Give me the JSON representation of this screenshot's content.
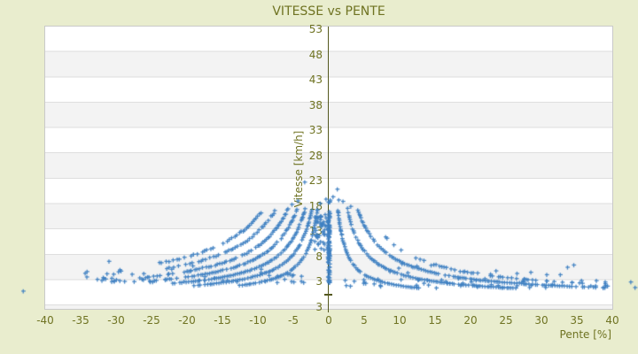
{
  "header": {
    "title": "VITESSE vs PENTE"
  },
  "chart_data": {
    "type": "scatter",
    "title": "VITESSE vs PENTE",
    "xlabel": "Pente [%]",
    "ylabel": "Vitesse [km/h]",
    "xlim": [
      -40,
      40
    ],
    "ylim": [
      -2.5,
      53.5
    ],
    "x_ticks": [
      -40,
      -35,
      -30,
      -25,
      -20,
      -15,
      -10,
      -5,
      0,
      5,
      10,
      15,
      20,
      25,
      30,
      35,
      40
    ],
    "y_ticks": [
      53,
      48,
      43,
      38,
      33,
      28,
      23,
      18,
      13,
      8,
      3
    ],
    "y_axis_bottom_label": "3",
    "grid": "alternating-horizontal-bands",
    "legend": false,
    "marker": {
      "shape": "plus",
      "size": 5,
      "color": "#3e80c2"
    },
    "colors": {
      "figure_bg": "#e9edce",
      "plot_bg": "#ffffff",
      "band": "#f3f3f3",
      "gridline": "#dedede",
      "plot_border": "#c9c9c9",
      "axis_line": "#54581e",
      "text": "#6f7322"
    },
    "pattern_note": "Points form hyperbolic families v = k/|pente| (quantized GPS elevation steps), a dense vertical column at pente=0 from v=2.6 to 17.3 km/h, and low-speed noise bands along both bottom sides.",
    "seed": 13,
    "curve_families": [
      {
        "side": "uphill",
        "sign": 1,
        "k_values": [
          22,
          45,
          70,
          95
        ],
        "v_top": [
          17.2,
          17.2,
          17.2,
          13.0
        ],
        "v_min": 1.7,
        "p_abs_max": 40,
        "fade_start": 30,
        "fade_end": 47,
        "density": [
          1,
          1,
          0.95,
          0.5
        ]
      },
      {
        "side": "downhill",
        "sign": -1,
        "k_values": [
          28,
          42,
          58,
          78,
          100,
          128,
          158
        ],
        "v_top": [
          17.3,
          17.3,
          17.3,
          17.3,
          17.3,
          16.8,
          16.5
        ],
        "v_min": 2.2,
        "p_abs_max": 27,
        "fade_start": 16,
        "fade_end": 28,
        "density": [
          1,
          1,
          1,
          0.95,
          0.9,
          0.85,
          0.8
        ]
      }
    ],
    "clusters": [
      {
        "name": "zero-slope-column",
        "p": [
          -0.16,
          0.16
        ],
        "v": [
          2.6,
          17.3
        ],
        "n": 95
      },
      {
        "name": "near-axis-downhill-blob",
        "p": [
          -2.0,
          -0.35
        ],
        "v": [
          9.2,
          16.3
        ],
        "n": 42
      },
      {
        "name": "above-crest-sparse",
        "p": [
          -6.5,
          3.2
        ],
        "v": [
          17.4,
          19.3
        ],
        "n": 7
      },
      {
        "name": "bottom-left-noise",
        "p": [
          -37,
          -9.5
        ],
        "v": [
          2.9,
          8.3
        ],
        "n": 48,
        "skew_low": true
      },
      {
        "name": "inner-left-low-noise",
        "p": [
          -10,
          -2
        ],
        "v": [
          2.6,
          4.6
        ],
        "n": 14
      },
      {
        "name": "bottom-right-noise",
        "p": [
          1.5,
          40
        ],
        "v": [
          1.7,
          3.6
        ],
        "n": 58
      },
      {
        "name": "mid-right-sparse",
        "p": [
          8,
          36
        ],
        "v": [
          3.8,
          6.5
        ],
        "n": 16
      }
    ],
    "outlier_points": [
      [
        -43.1,
        1.1
      ],
      [
        42.6,
        2.9
      ],
      [
        43.2,
        1.8
      ],
      [
        -3.4,
        22.6
      ],
      [
        1.2,
        21.2
      ],
      [
        0.6,
        19.7
      ],
      [
        2.0,
        18.8
      ],
      [
        -5.2,
        18.2
      ],
      [
        3.1,
        17.8
      ],
      [
        -1.2,
        18.4
      ]
    ]
  }
}
